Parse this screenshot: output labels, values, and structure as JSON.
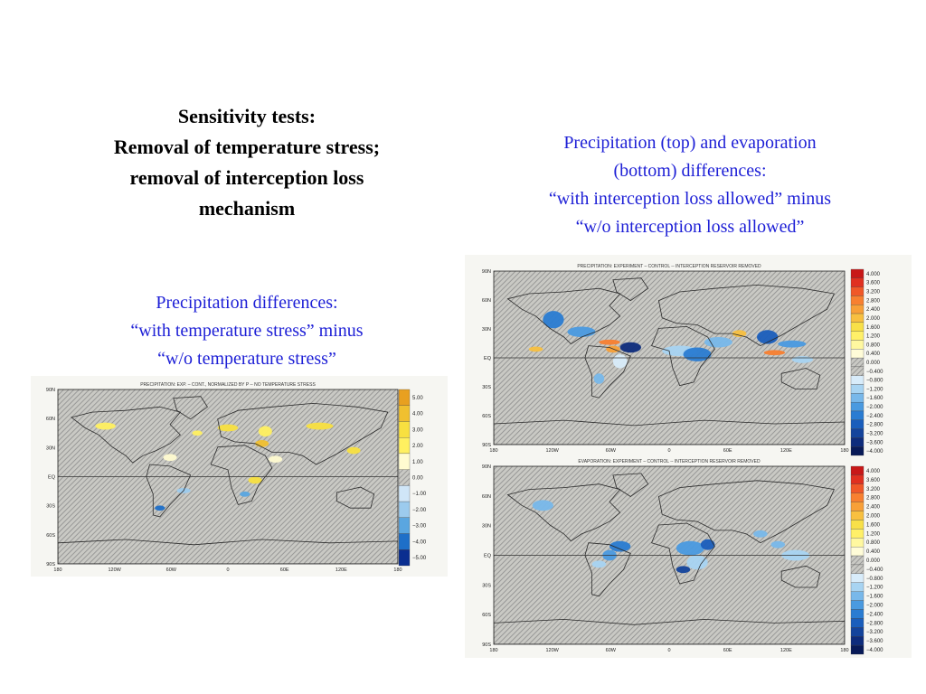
{
  "title": {
    "lines": [
      "Sensitivity tests:",
      "Removal of temperature stress;",
      "removal of interception loss",
      "mechanism"
    ]
  },
  "left_caption": {
    "lines": [
      "Precipitation differences:",
      "“with temperature stress” minus",
      "“w/o temperature stress”"
    ]
  },
  "right_caption": {
    "lines": [
      "Precipitation (top) and evaporation",
      "(bottom) differences:",
      "“with interception loss allowed” minus",
      "“w/o interception loss allowed”"
    ]
  },
  "maps": [
    {
      "id": "temp-stress-precip",
      "title": "PRECIPITATION: EXP. – CONT., NORMALIZED BY P  --  NO TEMPERATURE STRESS",
      "lat_labels": [
        "90N",
        "60N",
        "30N",
        "EQ",
        "30S",
        "60S",
        "90S"
      ],
      "lon_labels": [
        "180",
        "120W",
        "60W",
        "0",
        "60E",
        "120E",
        "180"
      ],
      "legend": [
        {
          "label": "5.00",
          "color": "#e8a020"
        },
        {
          "label": "4.00",
          "color": "#f0c030"
        },
        {
          "label": "3.00",
          "color": "#f8e040"
        },
        {
          "label": "2.00",
          "color": "#fff060"
        },
        {
          "label": "1.00",
          "color": "#fffbd0"
        },
        {
          "label": "0.00",
          "color": "hatch"
        },
        {
          "label": "−1.00",
          "color": "#d0e6f8"
        },
        {
          "label": "−2.00",
          "color": "#9ccbee"
        },
        {
          "label": "−3.00",
          "color": "#5aa6e0"
        },
        {
          "label": "−4.00",
          "color": "#1e6fc8"
        },
        {
          "label": "−5.00",
          "color": "#0a2e90"
        }
      ]
    },
    {
      "id": "interception-precip",
      "title": "PRECIPITATION: EXPERIMENT – CONTROL  --  INTERCEPTION RESERVOIR REMOVED",
      "lat_labels": [
        "90N",
        "60N",
        "30N",
        "EQ",
        "30S",
        "60S",
        "90S"
      ],
      "lon_labels": [
        "180",
        "120W",
        "60W",
        "0",
        "60E",
        "120E",
        "180"
      ],
      "legend": [
        {
          "label": "4.000",
          "color": "#c81818"
        },
        {
          "label": "3.600",
          "color": "#e03020"
        },
        {
          "label": "3.200",
          "color": "#f05828"
        },
        {
          "label": "2.800",
          "color": "#f88030"
        },
        {
          "label": "2.400",
          "color": "#f8a038"
        },
        {
          "label": "2.000",
          "color": "#f8c040"
        },
        {
          "label": "1.600",
          "color": "#f8e048"
        },
        {
          "label": "1.200",
          "color": "#fff068"
        },
        {
          "label": "0.800",
          "color": "#fff8a0"
        },
        {
          "label": "0.400",
          "color": "#fffcd8"
        },
        {
          "label": "0.000",
          "color": "hatch"
        },
        {
          "label": "−0.400",
          "color": "hatch"
        },
        {
          "label": "−0.800",
          "color": "#d8ecfa"
        },
        {
          "label": "−1.200",
          "color": "#a8d4f2"
        },
        {
          "label": "−1.600",
          "color": "#78b8ea"
        },
        {
          "label": "−2.000",
          "color": "#4a9ae0"
        },
        {
          "label": "−2.400",
          "color": "#2a7cd2"
        },
        {
          "label": "−2.800",
          "color": "#1a5ebc"
        },
        {
          "label": "−3.200",
          "color": "#14449c"
        },
        {
          "label": "−3.600",
          "color": "#0e2c7c"
        },
        {
          "label": "−4.000",
          "color": "#081a58"
        }
      ]
    },
    {
      "id": "interception-evap",
      "title": "EVAPORATION: EXPERIMENT – CONTROL  --  INTERCEPTION RESERVOIR REMOVED",
      "lat_labels": [
        "90N",
        "60N",
        "30N",
        "EQ",
        "30S",
        "60S",
        "90S"
      ],
      "lon_labels": [
        "180",
        "120W",
        "60W",
        "0",
        "60E",
        "120E",
        "180"
      ],
      "legend": [
        {
          "label": "4.000",
          "color": "#c81818"
        },
        {
          "label": "3.600",
          "color": "#e03020"
        },
        {
          "label": "3.200",
          "color": "#f05828"
        },
        {
          "label": "2.800",
          "color": "#f88030"
        },
        {
          "label": "2.400",
          "color": "#f8a038"
        },
        {
          "label": "2.000",
          "color": "#f8c040"
        },
        {
          "label": "1.600",
          "color": "#f8e048"
        },
        {
          "label": "1.200",
          "color": "#fff068"
        },
        {
          "label": "0.800",
          "color": "#fff8a0"
        },
        {
          "label": "0.400",
          "color": "#fffcd8"
        },
        {
          "label": "0.000",
          "color": "hatch"
        },
        {
          "label": "−0.400",
          "color": "hatch"
        },
        {
          "label": "−0.800",
          "color": "#d8ecfa"
        },
        {
          "label": "−1.200",
          "color": "#a8d4f2"
        },
        {
          "label": "−1.600",
          "color": "#78b8ea"
        },
        {
          "label": "−2.000",
          "color": "#4a9ae0"
        },
        {
          "label": "−2.400",
          "color": "#2a7cd2"
        },
        {
          "label": "−2.800",
          "color": "#1a5ebc"
        },
        {
          "label": "−3.200",
          "color": "#14449c"
        },
        {
          "label": "−3.600",
          "color": "#0e2c7c"
        },
        {
          "label": "−4.000",
          "color": "#081a58"
        }
      ]
    }
  ],
  "colors": {
    "caption_blue": "#1d1fd6",
    "hatch_gray": "#8c8c8c",
    "coastline": "#2a2a2a"
  }
}
